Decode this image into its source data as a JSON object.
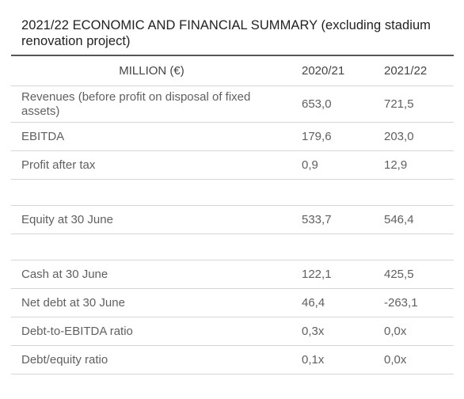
{
  "title": "2021/22 ECONOMIC AND FINANCIAL SUMMARY (excluding stadium renovation project)",
  "table": {
    "headers": [
      "MILLION (€)",
      "2020/21",
      "2021/22"
    ],
    "rows": [
      {
        "label": "Revenues (before profit on disposal of fixed assets)",
        "v2020": "653,0",
        "v2021": "721,5"
      },
      {
        "label": "EBITDA",
        "v2020": "179,6",
        "v2021": "203,0"
      },
      {
        "label": "Profit after tax",
        "v2020": "0,9",
        "v2021": "12,9"
      },
      {
        "label": "",
        "v2020": "",
        "v2021": ""
      },
      {
        "label": "Equity at 30 June",
        "v2020": "533,7",
        "v2021": "546,4"
      },
      {
        "label": "",
        "v2020": "",
        "v2021": ""
      },
      {
        "label": "Cash at 30 June",
        "v2020": "122,1",
        "v2021": "425,5"
      },
      {
        "label": "Net debt at 30 June",
        "v2020": "46,4",
        "v2021": "-263,1"
      },
      {
        "label": "Debt-to-EBITDA ratio",
        "v2020": "0,3x",
        "v2021": "0,0x"
      },
      {
        "label": "Debt/equity ratio",
        "v2020": "0,1x",
        "v2021": "0,0x"
      }
    ]
  }
}
